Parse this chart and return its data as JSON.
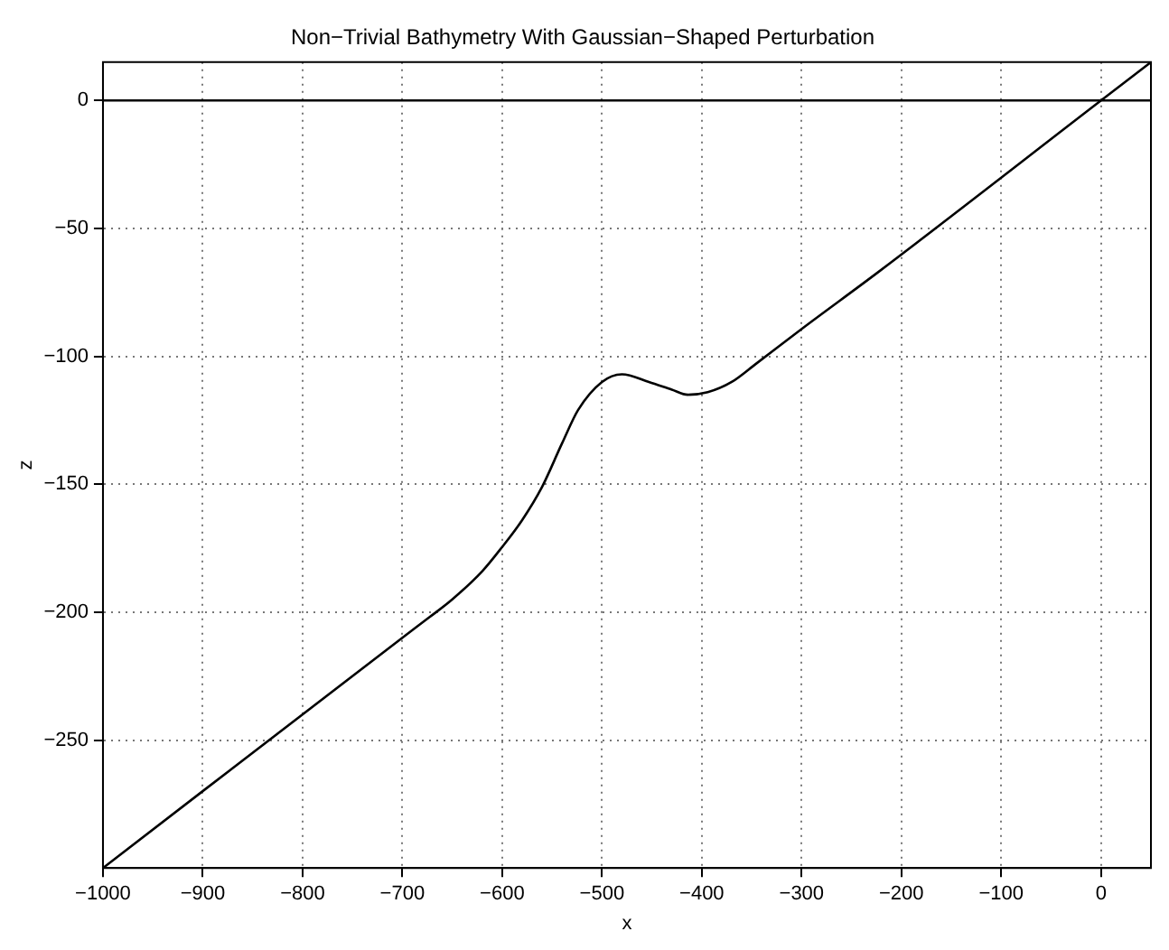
{
  "chart_data": {
    "type": "line",
    "title": "Non−Trivial Bathymetry With Gaussian−Shaped Perturbation",
    "xlabel": "x",
    "ylabel": "z",
    "series": [
      {
        "color": "#000000",
        "x": [
          -1000,
          50
        ],
        "values": [
          0,
          0
        ]
      },
      {
        "color": "#000000",
        "x": [
          -1000,
          -700,
          -673,
          -650,
          -620,
          -601,
          -580,
          -560,
          -540,
          -524,
          -500,
          -480,
          -453,
          -430,
          -414,
          -394,
          -370,
          -346,
          -299,
          -223,
          0,
          50
        ],
        "values": [
          -300,
          -210,
          -202,
          -195,
          -184,
          -175,
          -164,
          -151,
          -134,
          -121,
          -110,
          -107,
          -110,
          -113,
          -115,
          -114,
          -110,
          -103,
          -89,
          -67,
          0,
          15
        ]
      }
    ],
    "xlim": [
      -1000,
      50
    ],
    "xticks": [
      -1000,
      -900,
      -800,
      -700,
      -600,
      -500,
      -400,
      -300,
      -200,
      -100,
      0
    ],
    "ylim": [
      -300,
      15
    ],
    "yticks": [
      -250,
      -200,
      -150,
      -100,
      -50,
      0
    ],
    "grid": true,
    "legend": false,
    "marker": "none",
    "line_style": "solid"
  }
}
